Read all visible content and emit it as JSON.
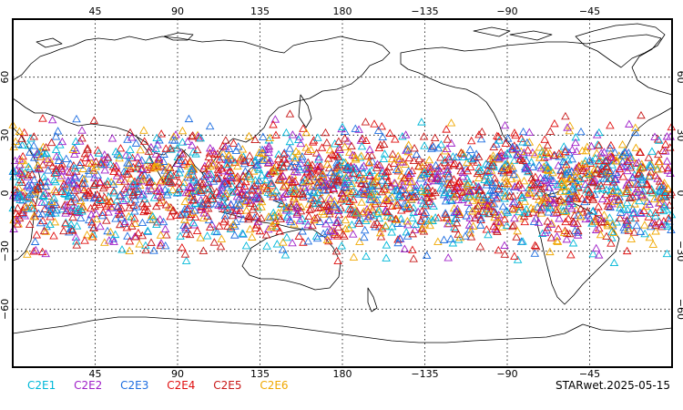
{
  "chart_data": {
    "type": "scatter",
    "projection": "equirectangular, Pacific-centred (0°E at left edge, 180° at centre)",
    "marker": "open triangle",
    "grid": true,
    "x_tick_labels": [
      "45",
      "90",
      "135",
      "180",
      "−135",
      "−90",
      "−45"
    ],
    "x_ticks_deg": [
      45,
      90,
      135,
      180,
      225,
      270,
      315
    ],
    "y_tick_labels_left": [
      "60",
      "30",
      "0",
      "−30",
      "−60"
    ],
    "y_tick_labels_right": [
      "60",
      "30",
      "0",
      "−30",
      "−60"
    ],
    "y_ticks_deg": [
      60,
      30,
      0,
      -30,
      -60
    ],
    "lat_range": [
      -90,
      90
    ],
    "lon_range": [
      0,
      360
    ],
    "data_lat_band": [
      -40,
      45
    ],
    "series": [
      {
        "name": "C2E1",
        "color": "#00b8d8"
      },
      {
        "name": "C2E2",
        "color": "#a020c8"
      },
      {
        "name": "C2E3",
        "color": "#1e6ee0"
      },
      {
        "name": "C2E4",
        "color": "#e01010"
      },
      {
        "name": "C2E5",
        "color": "#c81818"
      },
      {
        "name": "C2E6",
        "color": "#f0a800"
      }
    ],
    "stamp": "STARwet.2025-05-15"
  }
}
